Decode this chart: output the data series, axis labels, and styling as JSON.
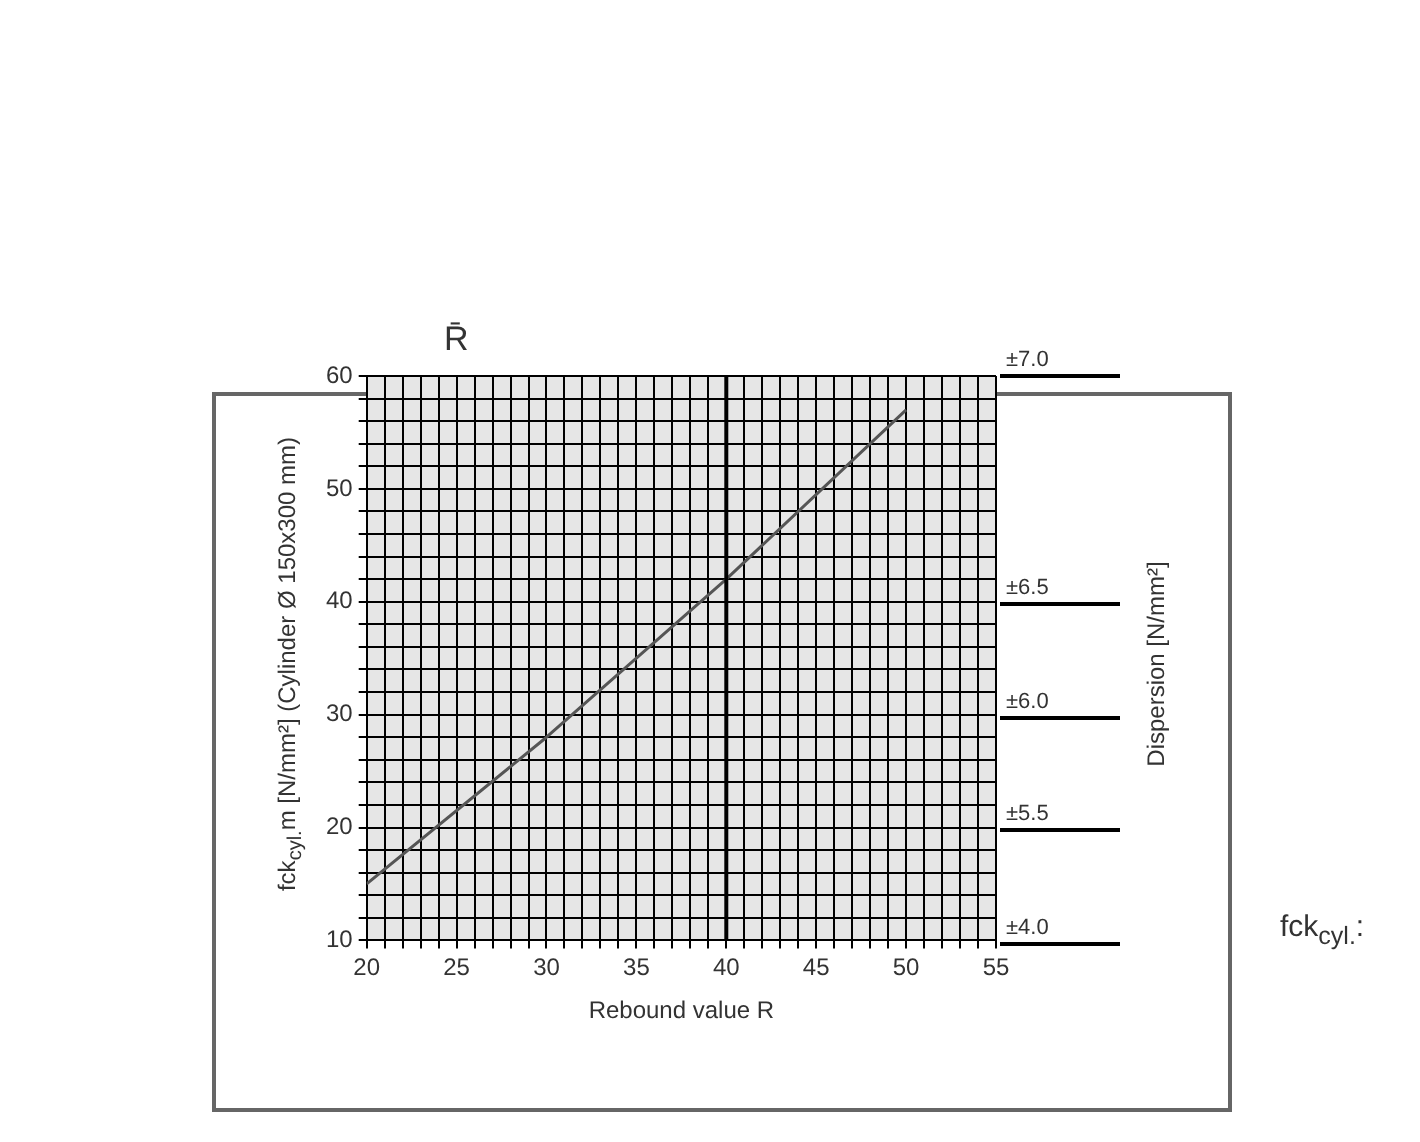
{
  "chart_data": {
    "type": "line",
    "xlabel": "Rebound value R",
    "ylabel": "fck$_{cyl.}$m [N/mm²] (Cylinder Ø 150x300 mm)",
    "annotations": [
      "R̄",
      "fck$_{cyl.}$:",
      "Dispersion [N/mm²]",
      "±4.0",
      "±5.5",
      "±6.0",
      "±6.5",
      "±7.0"
    ],
    "x": [
      20,
      30,
      40,
      50
    ],
    "series": [
      {
        "color": "#555555",
        "values": [
          15,
          28,
          42,
          57
        ]
      }
    ],
    "xlim": [
      20,
      55
    ],
    "xticks": [
      20,
      {
        "value": 21,
        "label": null
      },
      {
        "value": 22,
        "label": null
      },
      {
        "value": 23,
        "label": null
      },
      {
        "value": 24,
        "label": null
      },
      25,
      {
        "value": 26,
        "label": null
      },
      {
        "value": 27,
        "label": null
      },
      {
        "value": 28,
        "label": null
      },
      {
        "value": 29,
        "label": null
      },
      30,
      {
        "value": 31,
        "label": null
      },
      {
        "value": 32,
        "label": null
      },
      {
        "value": 33,
        "label": null
      },
      {
        "value": 34,
        "label": null
      },
      35,
      {
        "value": 36,
        "label": null
      },
      {
        "value": 37,
        "label": null
      },
      {
        "value": 38,
        "label": null
      },
      {
        "value": 39,
        "label": null
      },
      40,
      {
        "value": 41,
        "label": null
      },
      {
        "value": 42,
        "label": null
      },
      {
        "value": 43,
        "label": null
      },
      {
        "value": 44,
        "label": null
      },
      45,
      {
        "value": 46,
        "label": null
      },
      {
        "value": 47,
        "label": null
      },
      {
        "value": 48,
        "label": null
      },
      {
        "value": 49,
        "label": null
      },
      50,
      {
        "value": 51,
        "label": null
      },
      {
        "value": 52,
        "label": null
      },
      {
        "value": 53,
        "label": null
      },
      {
        "value": 54,
        "label": null
      },
      55
    ],
    "ylim": [
      10,
      60
    ],
    "yticks": [
      10,
      {
        "value": 12,
        "label": null
      },
      {
        "value": 14,
        "label": null
      },
      {
        "value": 16,
        "label": null
      },
      {
        "value": 18,
        "label": null
      },
      20,
      {
        "value": 22,
        "label": null
      },
      {
        "value": 24,
        "label": null
      },
      {
        "value": 26,
        "label": null
      },
      {
        "value": 28,
        "label": null
      },
      30,
      {
        "value": 32,
        "label": null
      },
      {
        "value": 34,
        "label": null
      },
      {
        "value": 36,
        "label": null
      },
      {
        "value": 38,
        "label": null
      },
      40,
      {
        "value": 42,
        "label": null
      },
      {
        "value": 44,
        "label": null
      },
      {
        "value": 46,
        "label": null
      },
      {
        "value": 48,
        "label": null
      },
      50,
      {
        "value": 52,
        "label": null
      },
      {
        "value": 54,
        "label": null
      },
      {
        "value": 56,
        "label": null
      },
      {
        "value": 58,
        "label": null
      },
      60
    ],
    "grid": true,
    "marker": "none",
    "line_style": "solid",
    "legend": false,
    "ref_lines": [
      {
        "axis": "x",
        "value": 40,
        "color": "#000000"
      }
    ]
  }
}
